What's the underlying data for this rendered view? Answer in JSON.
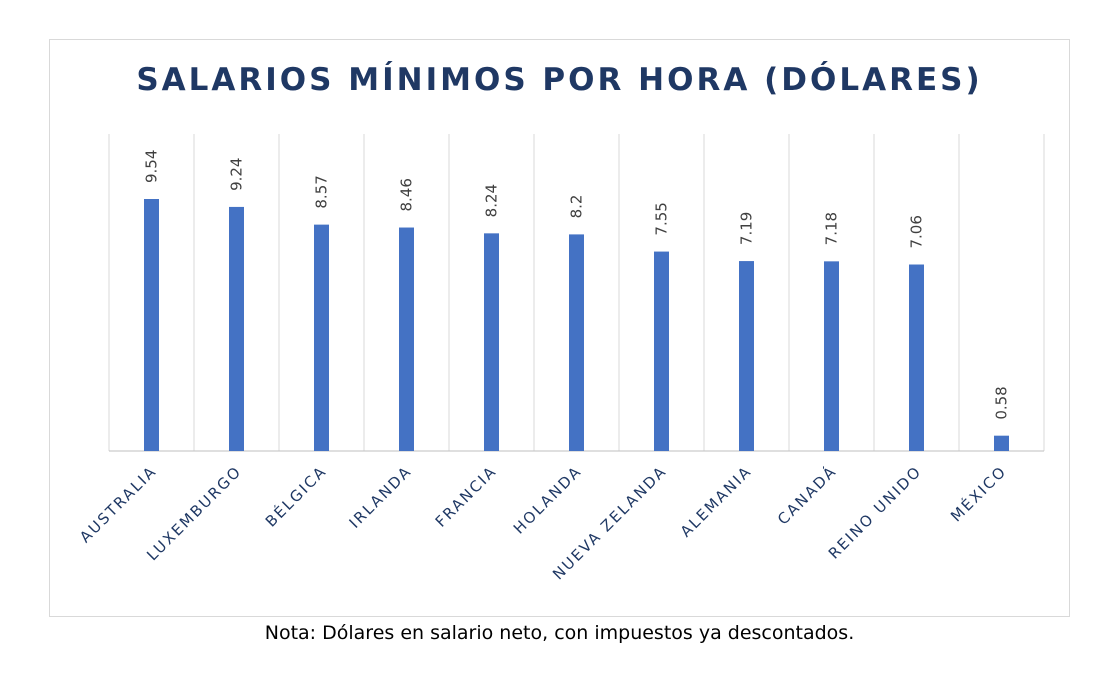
{
  "chart_data": {
    "type": "bar",
    "title": "SALARIOS MÍNIMOS POR HORA (DÓLARES)",
    "note": "Nota: Dólares en salario neto, con impuestos ya descontados.",
    "categories": [
      "AUSTRALIA",
      "LUXEMBURGO",
      "BÉLGICA",
      "IRLANDA",
      "FRANCIA",
      "HOLANDA",
      "NUEVA ZELANDA",
      "ALEMANIA",
      "CANADÁ",
      "REINO UNIDO",
      "MÉXICO"
    ],
    "values": [
      9.54,
      9.24,
      8.57,
      8.46,
      8.24,
      8.2,
      7.55,
      7.19,
      7.18,
      7.06,
      0.58
    ],
    "value_labels": [
      "9.54",
      "9.24",
      "8.57",
      "8.46",
      "8.24",
      "8.2",
      "7.55",
      "7.19",
      "7.18",
      "7.06",
      "0.58"
    ],
    "ylim": [
      0,
      9.54
    ],
    "grid": "vertical",
    "legend": "none",
    "colors": {
      "bar": "#4472c4",
      "title": "#1f3864",
      "tick_label": "#1f3864",
      "data_label": "#404040",
      "gridline": "#d9d9d9",
      "axis": "#bfbfbf"
    }
  }
}
